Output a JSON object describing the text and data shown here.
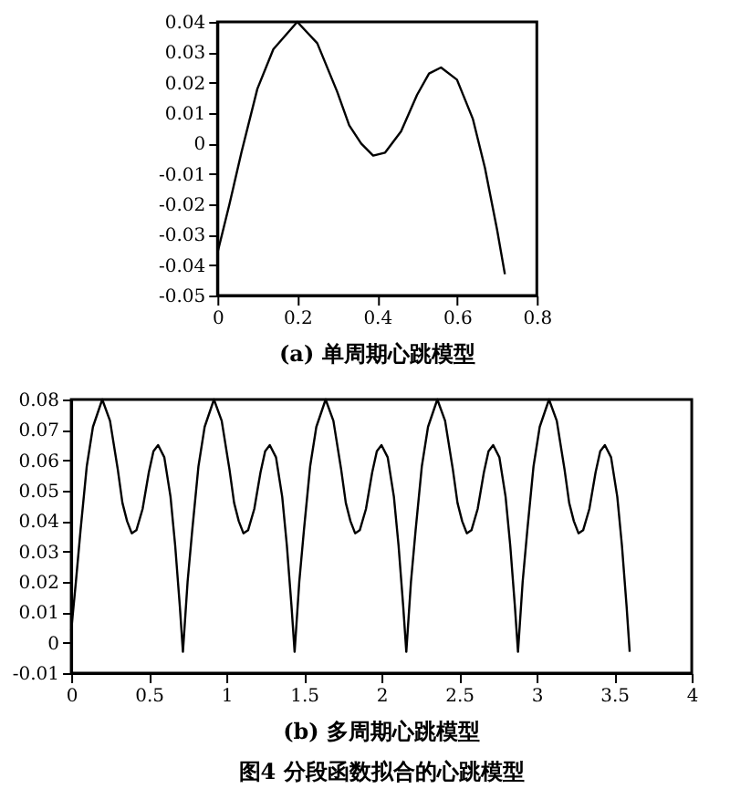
{
  "chart_data": [
    {
      "type": "line",
      "annotations": [
        "(a) 单周期心跳模型"
      ],
      "xlim": [
        0,
        0.8
      ],
      "xticks": [
        0,
        0.2,
        0.4,
        0.6,
        0.8
      ],
      "ylim": [
        -0.05,
        0.04
      ],
      "yticks": [
        -0.05,
        -0.04,
        -0.03,
        -0.02,
        -0.01,
        0,
        0.01,
        0.02,
        0.03,
        0.04
      ],
      "x": [
        0,
        0.03,
        0.06,
        0.1,
        0.14,
        0.2,
        0.25,
        0.3,
        0.33,
        0.36,
        0.39,
        0.42,
        0.46,
        0.5,
        0.53,
        0.56,
        0.6,
        0.64,
        0.67,
        0.7,
        0.72
      ],
      "series": [
        {
          "color": "#000000",
          "values": [
            -0.036,
            -0.02,
            -0.003,
            0.018,
            0.031,
            0.04,
            0.033,
            0.017,
            0.006,
            0.0,
            -0.004,
            -0.003,
            0.004,
            0.016,
            0.023,
            0.025,
            0.021,
            0.008,
            -0.008,
            -0.028,
            -0.043
          ]
        }
      ]
    },
    {
      "type": "line",
      "annotations": [
        "(b) 多周期心跳模型",
        "图4 分段函数拟合的心跳模型"
      ],
      "xlim": [
        0,
        4
      ],
      "xticks": [
        0,
        0.5,
        1,
        1.5,
        2,
        2.5,
        3,
        3.5,
        4
      ],
      "ylim": [
        -0.01,
        0.08
      ],
      "yticks": [
        -0.01,
        0,
        0.01,
        0.02,
        0.03,
        0.04,
        0.05,
        0.06,
        0.07,
        0.08
      ],
      "x": [
        0,
        0.03,
        0.06,
        0.1,
        0.14,
        0.2,
        0.25,
        0.3,
        0.33,
        0.36,
        0.39,
        0.42,
        0.46,
        0.5,
        0.53,
        0.56,
        0.6,
        0.64,
        0.67,
        0.7,
        0.72,
        0.75,
        0.78,
        0.82,
        0.86,
        0.92,
        0.97,
        1.02,
        1.05,
        1.08,
        1.11,
        1.14,
        1.18,
        1.22,
        1.25,
        1.28,
        1.32,
        1.36,
        1.39,
        1.42,
        1.44,
        1.47,
        1.5,
        1.54,
        1.58,
        1.64,
        1.69,
        1.74,
        1.77,
        1.8,
        1.83,
        1.86,
        1.9,
        1.94,
        1.97,
        2.0,
        2.04,
        2.08,
        2.11,
        2.14,
        2.16,
        2.19,
        2.22,
        2.26,
        2.3,
        2.36,
        2.41,
        2.46,
        2.49,
        2.52,
        2.55,
        2.58,
        2.62,
        2.66,
        2.69,
        2.72,
        2.76,
        2.8,
        2.83,
        2.86,
        2.88,
        2.91,
        2.94,
        2.98,
        3.02,
        3.08,
        3.13,
        3.18,
        3.21,
        3.24,
        3.27,
        3.3,
        3.34,
        3.38,
        3.41,
        3.44,
        3.48,
        3.52,
        3.55,
        3.58,
        3.6
      ],
      "series": [
        {
          "color": "#000000",
          "values": [
            0.004,
            0.02,
            0.037,
            0.058,
            0.071,
            0.08,
            0.073,
            0.057,
            0.046,
            0.04,
            0.036,
            0.037,
            0.044,
            0.056,
            0.063,
            0.065,
            0.061,
            0.048,
            0.032,
            0.012,
            -0.003,
            0.02,
            0.037,
            0.058,
            0.071,
            0.08,
            0.073,
            0.057,
            0.046,
            0.04,
            0.036,
            0.037,
            0.044,
            0.056,
            0.063,
            0.065,
            0.061,
            0.048,
            0.032,
            0.012,
            -0.003,
            0.02,
            0.037,
            0.058,
            0.071,
            0.08,
            0.073,
            0.057,
            0.046,
            0.04,
            0.036,
            0.037,
            0.044,
            0.056,
            0.063,
            0.065,
            0.061,
            0.048,
            0.032,
            0.012,
            -0.003,
            0.02,
            0.037,
            0.058,
            0.071,
            0.08,
            0.073,
            0.057,
            0.046,
            0.04,
            0.036,
            0.037,
            0.044,
            0.056,
            0.063,
            0.065,
            0.061,
            0.048,
            0.032,
            0.012,
            -0.003,
            0.02,
            0.037,
            0.058,
            0.071,
            0.08,
            0.073,
            0.057,
            0.046,
            0.04,
            0.036,
            0.037,
            0.044,
            0.056,
            0.063,
            0.065,
            0.061,
            0.048,
            0.032,
            0.012,
            -0.003
          ]
        }
      ]
    }
  ]
}
